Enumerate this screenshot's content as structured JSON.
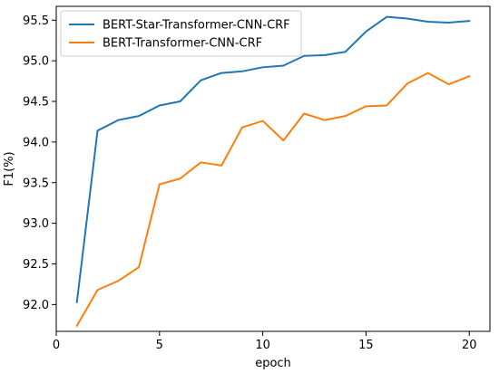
{
  "chart_data": {
    "type": "line",
    "xlabel": "epoch",
    "ylabel": "F1(%)",
    "xlim": [
      0,
      21
    ],
    "ylim": [
      91.67,
      95.67
    ],
    "xticks": [
      0,
      5,
      10,
      15,
      20
    ],
    "yticks": [
      92.0,
      92.5,
      93.0,
      93.5,
      94.0,
      94.5,
      95.0,
      95.5
    ],
    "xtick_labels": [
      "0",
      "5",
      "10",
      "15",
      "20"
    ],
    "ytick_labels": [
      "92.0",
      "92.5",
      "93.0",
      "93.5",
      "94.0",
      "94.5",
      "95.0",
      "95.5"
    ],
    "grid": false,
    "legend_position": "upper-left",
    "x": [
      1,
      2,
      3,
      4,
      5,
      6,
      7,
      8,
      9,
      10,
      11,
      12,
      13,
      14,
      15,
      16,
      17,
      18,
      19,
      20
    ],
    "series": [
      {
        "name": "BERT-Star-Transformer-CNN-CRF",
        "color": "#1f77b4",
        "values": [
          92.03,
          94.14,
          94.27,
          94.32,
          94.45,
          94.5,
          94.76,
          94.85,
          94.87,
          94.92,
          94.94,
          95.06,
          95.07,
          95.11,
          95.36,
          95.54,
          95.52,
          95.48,
          95.47,
          95.49
        ]
      },
      {
        "name": "BERT-Transformer-CNN-CRF",
        "color": "#ff7f0e",
        "values": [
          91.74,
          92.18,
          92.29,
          92.46,
          93.48,
          93.55,
          93.75,
          93.71,
          94.18,
          94.26,
          94.02,
          94.35,
          94.27,
          94.32,
          94.44,
          94.45,
          94.72,
          94.85,
          94.71,
          94.81
        ]
      }
    ]
  }
}
